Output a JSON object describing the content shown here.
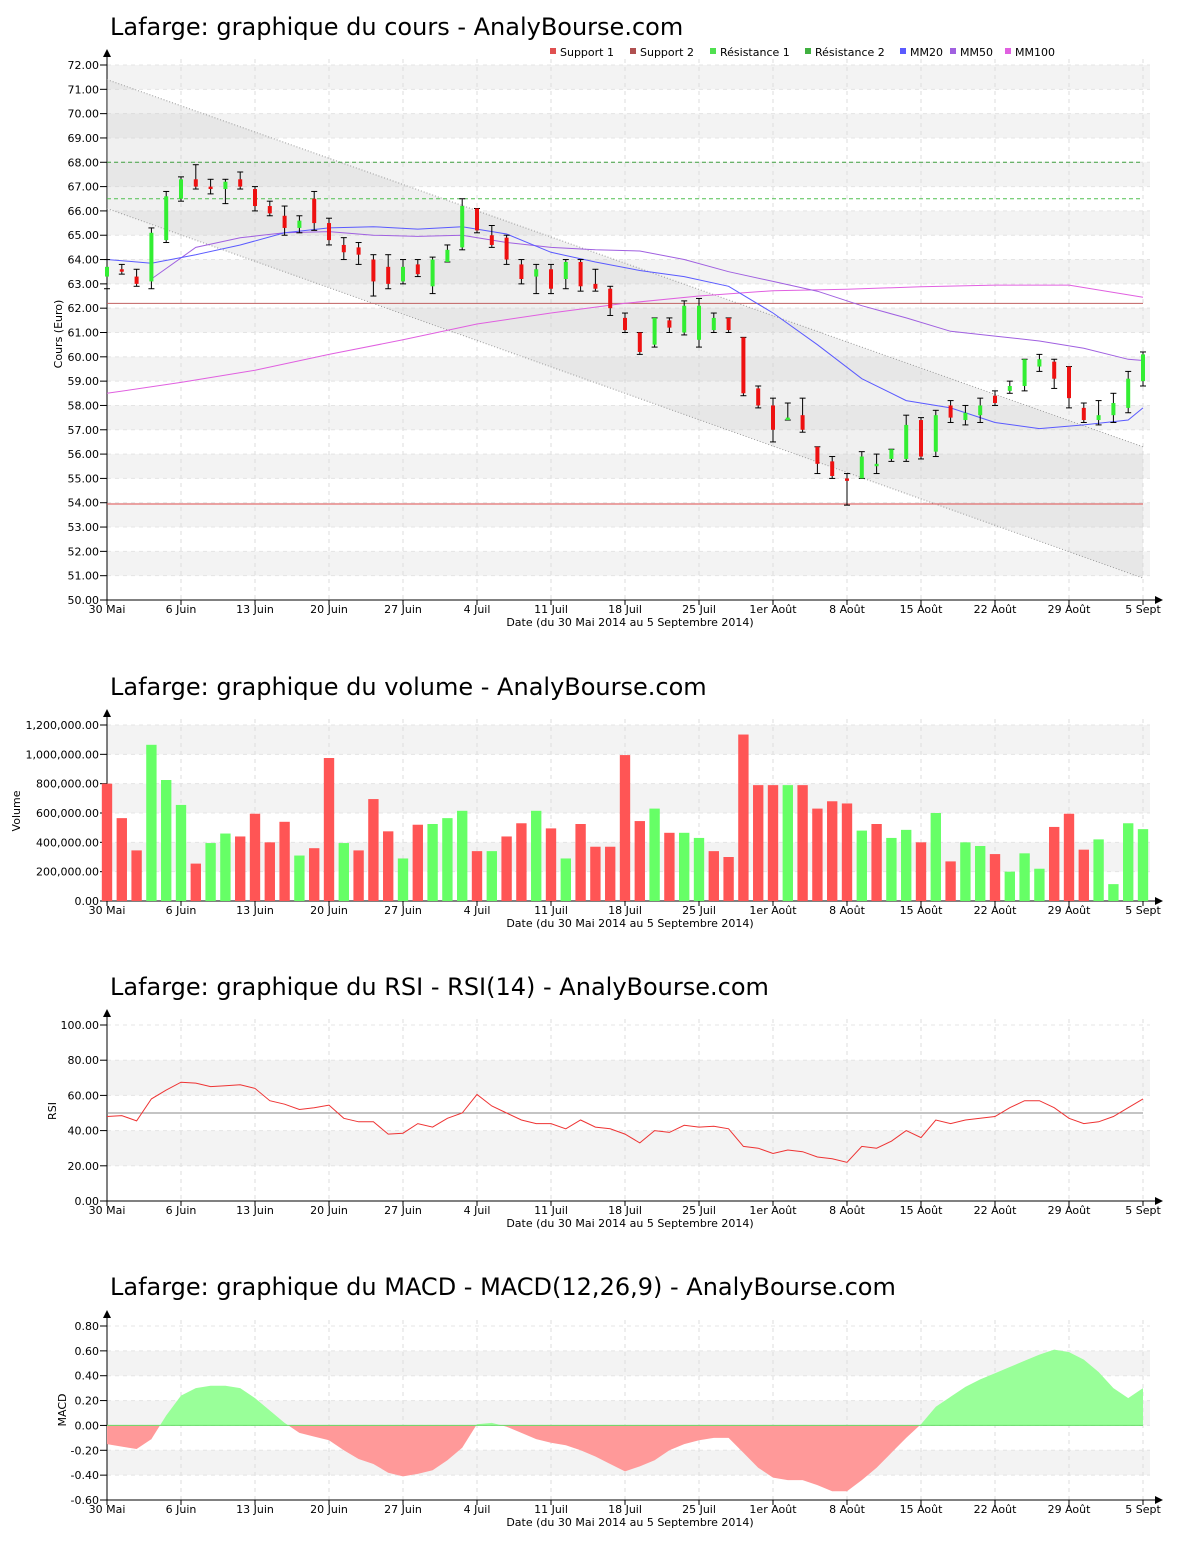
{
  "chart_data": [
    {
      "id": "price",
      "type": "candlestick",
      "title": "Lafarge: graphique du cours - AnalyBourse.com",
      "ylabel": "Cours (Euro)",
      "xlabel": "Date (du 30 Mai 2014 au 5 Septembre 2014)",
      "ylim": [
        50,
        72
      ],
      "yticks": [
        "50.00",
        "51.00",
        "52.00",
        "53.00",
        "54.00",
        "55.00",
        "56.00",
        "57.00",
        "58.00",
        "59.00",
        "60.00",
        "61.00",
        "62.00",
        "63.00",
        "64.00",
        "65.00",
        "66.00",
        "67.00",
        "68.00",
        "69.00",
        "70.00",
        "71.00",
        "72.00"
      ],
      "xticks": [
        "30 Mai",
        "6 Juin",
        "13 Juin",
        "20 Juin",
        "27 Juin",
        "4 Juil",
        "11 Juil",
        "18 Juil",
        "25 Juil",
        "1er Août",
        "8 Août",
        "15 Août",
        "22 Août",
        "29 Août",
        "5 Sept"
      ],
      "legend": [
        {
          "name": "Support 1",
          "color": "#e05050"
        },
        {
          "name": "Support 2",
          "color": "#b05050"
        },
        {
          "name": "Résistance 1",
          "color": "#50e050"
        },
        {
          "name": "Résistance 2",
          "color": "#40b040"
        },
        {
          "name": "MM20",
          "color": "#5a5aff"
        },
        {
          "name": "MM50",
          "color": "#a060e0"
        },
        {
          "name": "MM100",
          "color": "#e060e0"
        }
      ],
      "levels": {
        "support1": 53.95,
        "support2": 62.2,
        "resistance1": 66.5,
        "resistance2": 68.0
      },
      "channel": {
        "upper": [
          71.4,
          56.3
        ],
        "lower": [
          66.1,
          50.9
        ]
      },
      "candles": [
        [
          63.3,
          64.0,
          62.8,
          63.7
        ],
        [
          63.6,
          63.8,
          63.4,
          63.5
        ],
        [
          63.3,
          63.6,
          62.9,
          63.0
        ],
        [
          63.1,
          65.3,
          62.8,
          65.1
        ],
        [
          64.8,
          66.8,
          64.7,
          66.6
        ],
        [
          66.5,
          67.4,
          66.4,
          67.3
        ],
        [
          67.3,
          67.9,
          66.9,
          67.0
        ],
        [
          67.0,
          67.3,
          66.7,
          66.9
        ],
        [
          66.9,
          67.3,
          66.3,
          67.2
        ],
        [
          67.3,
          67.6,
          66.9,
          67.0
        ],
        [
          66.9,
          67.0,
          66.0,
          66.2
        ],
        [
          66.2,
          66.4,
          65.8,
          65.9
        ],
        [
          65.8,
          66.2,
          65.0,
          65.3
        ],
        [
          65.3,
          65.8,
          65.1,
          65.6
        ],
        [
          66.5,
          66.8,
          65.2,
          65.5
        ],
        [
          65.5,
          65.7,
          64.6,
          64.8
        ],
        [
          64.6,
          64.9,
          64.0,
          64.3
        ],
        [
          64.5,
          64.7,
          63.8,
          64.2
        ],
        [
          64.0,
          64.2,
          62.5,
          63.1
        ],
        [
          63.7,
          64.2,
          62.8,
          63.0
        ],
        [
          63.1,
          64.0,
          63.0,
          63.7
        ],
        [
          63.8,
          64.0,
          63.3,
          63.4
        ],
        [
          62.9,
          64.1,
          62.6,
          64.0
        ],
        [
          63.9,
          64.6,
          63.9,
          64.4
        ],
        [
          64.5,
          66.5,
          64.4,
          66.2
        ],
        [
          66.1,
          66.1,
          65.1,
          65.2
        ],
        [
          65.0,
          65.4,
          64.5,
          64.6
        ],
        [
          64.9,
          65.0,
          63.8,
          64.0
        ],
        [
          63.8,
          64.0,
          63.0,
          63.2
        ],
        [
          63.3,
          63.8,
          62.6,
          63.6
        ],
        [
          63.6,
          63.8,
          62.6,
          62.8
        ],
        [
          63.2,
          64.0,
          62.8,
          63.9
        ],
        [
          63.9,
          64.0,
          62.7,
          62.9
        ],
        [
          63.0,
          63.6,
          62.7,
          62.8
        ],
        [
          62.8,
          62.9,
          61.7,
          62.0
        ],
        [
          61.6,
          61.8,
          61.0,
          61.1
        ],
        [
          61.0,
          61.0,
          60.1,
          60.2
        ],
        [
          60.5,
          61.6,
          60.4,
          61.6
        ],
        [
          61.5,
          61.6,
          61.0,
          61.2
        ],
        [
          61.0,
          62.3,
          60.9,
          62.1
        ],
        [
          60.7,
          62.4,
          60.4,
          62.1
        ],
        [
          61.1,
          61.8,
          61.0,
          61.6
        ],
        [
          61.6,
          61.6,
          61.0,
          61.1
        ],
        [
          60.8,
          60.8,
          58.4,
          58.5
        ],
        [
          58.7,
          58.8,
          57.9,
          58.0
        ],
        [
          58.0,
          58.3,
          56.5,
          57.0
        ],
        [
          57.4,
          58.1,
          57.4,
          57.5
        ],
        [
          57.6,
          58.3,
          56.9,
          57.0
        ],
        [
          56.3,
          56.3,
          55.2,
          55.6
        ],
        [
          55.7,
          55.9,
          55.0,
          55.1
        ],
        [
          55.0,
          55.2,
          53.9,
          54.9
        ],
        [
          55.0,
          56.1,
          55.0,
          55.9
        ],
        [
          55.5,
          56.0,
          55.2,
          55.6
        ],
        [
          55.8,
          56.2,
          55.7,
          56.2
        ],
        [
          55.8,
          57.6,
          55.7,
          57.2
        ],
        [
          57.4,
          57.5,
          55.8,
          55.9
        ],
        [
          56.1,
          57.8,
          55.9,
          57.6
        ],
        [
          58.0,
          58.2,
          57.3,
          57.5
        ],
        [
          57.4,
          58.0,
          57.2,
          57.7
        ],
        [
          57.6,
          58.3,
          57.3,
          58.0
        ],
        [
          58.4,
          58.6,
          58.0,
          58.1
        ],
        [
          58.6,
          59.0,
          58.5,
          58.8
        ],
        [
          58.8,
          59.9,
          58.6,
          59.9
        ],
        [
          59.6,
          60.1,
          59.4,
          59.9
        ],
        [
          59.8,
          59.9,
          58.7,
          59.1
        ],
        [
          59.6,
          59.6,
          57.9,
          58.3
        ],
        [
          57.9,
          58.1,
          57.3,
          57.4
        ],
        [
          57.4,
          58.2,
          57.2,
          57.6
        ],
        [
          57.6,
          58.5,
          57.3,
          58.1
        ],
        [
          57.9,
          59.4,
          57.7,
          59.1
        ],
        [
          59.0,
          60.2,
          58.8,
          60.1
        ]
      ],
      "mm20": [
        [
          0,
          64.0
        ],
        [
          3,
          63.85
        ],
        [
          6,
          64.2
        ],
        [
          9,
          64.6
        ],
        [
          12,
          65.1
        ],
        [
          15,
          65.3
        ],
        [
          18,
          65.35
        ],
        [
          21,
          65.25
        ],
        [
          24,
          65.35
        ],
        [
          27,
          65.05
        ],
        [
          30,
          64.3
        ],
        [
          33,
          63.9
        ],
        [
          36,
          63.55
        ],
        [
          39,
          63.3
        ],
        [
          42,
          62.9
        ],
        [
          45,
          61.8
        ],
        [
          48,
          60.5
        ],
        [
          51,
          59.1
        ],
        [
          54,
          58.2
        ],
        [
          57,
          57.9
        ],
        [
          60,
          57.3
        ],
        [
          63,
          57.05
        ],
        [
          66,
          57.2
        ],
        [
          69,
          57.4
        ],
        [
          70,
          57.9
        ]
      ],
      "mm50": [
        [
          3,
          63.2
        ],
        [
          6,
          64.5
        ],
        [
          9,
          64.9
        ],
        [
          12,
          65.1
        ],
        [
          15,
          65.15
        ],
        [
          18,
          65.0
        ],
        [
          21,
          64.95
        ],
        [
          24,
          65.0
        ],
        [
          27,
          64.7
        ],
        [
          30,
          64.5
        ],
        [
          33,
          64.4
        ],
        [
          36,
          64.35
        ],
        [
          39,
          64.0
        ],
        [
          42,
          63.5
        ],
        [
          45,
          63.1
        ],
        [
          48,
          62.7
        ],
        [
          51,
          62.1
        ],
        [
          54,
          61.6
        ],
        [
          57,
          61.05
        ],
        [
          60,
          60.85
        ],
        [
          63,
          60.65
        ],
        [
          66,
          60.35
        ],
        [
          69,
          59.9
        ],
        [
          70,
          59.85
        ]
      ],
      "mm100": [
        [
          0,
          58.5
        ],
        [
          5,
          58.95
        ],
        [
          10,
          59.45
        ],
        [
          15,
          60.1
        ],
        [
          20,
          60.7
        ],
        [
          25,
          61.35
        ],
        [
          30,
          61.8
        ],
        [
          35,
          62.2
        ],
        [
          40,
          62.5
        ],
        [
          45,
          62.72
        ],
        [
          50,
          62.78
        ],
        [
          55,
          62.88
        ],
        [
          60,
          62.95
        ],
        [
          65,
          62.95
        ],
        [
          70,
          62.45
        ]
      ]
    },
    {
      "id": "volume",
      "type": "bar",
      "title": "Lafarge: graphique du volume - AnalyBourse.com",
      "ylabel": "Volume",
      "xlabel": "Date (du 30 Mai 2014 au 5 Septembre 2014)",
      "ylim": [
        0,
        1200000
      ],
      "yticks": [
        "0.00",
        "200,000.00",
        "400,000.00",
        "600,000.00",
        "800,000.00",
        "1,000,000.00",
        "1,200,000.00"
      ],
      "xticks": [
        "30 Mai",
        "6 Juin",
        "13 Juin",
        "20 Juin",
        "27 Juin",
        "4 Juil",
        "11 Juil",
        "18 Juil",
        "25 Juil",
        "1er Août",
        "8 Août",
        "15 Août",
        "22 Août",
        "29 Août",
        "5 Sept"
      ],
      "values": [
        800000,
        565000,
        345000,
        1065000,
        825000,
        655000,
        255000,
        395000,
        460000,
        440000,
        595000,
        400000,
        540000,
        310000,
        360000,
        975000,
        395000,
        345000,
        695000,
        475000,
        290000,
        520000,
        525000,
        565000,
        615000,
        340000,
        340000,
        440000,
        530000,
        615000,
        495000,
        290000,
        525000,
        370000,
        370000,
        995000,
        545000,
        630000,
        465000,
        465000,
        430000,
        340000,
        300000,
        1135000,
        790000,
        790000,
        790000,
        790000,
        630000,
        680000,
        665000,
        480000,
        525000,
        430000,
        485000,
        400000,
        600000,
        270000,
        400000,
        375000,
        320000,
        200000,
        325000,
        220000,
        505000,
        595000,
        350000,
        420000,
        115000,
        530000,
        490000
      ],
      "colors": [
        "r",
        "r",
        "r",
        "g",
        "g",
        "g",
        "r",
        "g",
        "g",
        "r",
        "r",
        "r",
        "r",
        "g",
        "r",
        "r",
        "g",
        "r",
        "r",
        "r",
        "g",
        "r",
        "g",
        "g",
        "g",
        "r",
        "g",
        "r",
        "r",
        "g",
        "r",
        "g",
        "r",
        "r",
        "r",
        "r",
        "r",
        "g",
        "r",
        "g",
        "g",
        "r",
        "r",
        "r",
        "r",
        "r",
        "g",
        "r",
        "r",
        "r",
        "r",
        "g",
        "r",
        "g",
        "g",
        "r",
        "g",
        "r",
        "g",
        "g",
        "r",
        "g",
        "g",
        "g",
        "r",
        "r",
        "r",
        "g",
        "g",
        "g",
        "g"
      ]
    },
    {
      "id": "rsi",
      "type": "line",
      "title": "Lafarge: graphique du RSI - RSI(14) - AnalyBourse.com",
      "ylabel": "RSI",
      "xlabel": "Date (du 30 Mai 2014 au 5 Septembre 2014)",
      "ylim": [
        0,
        100
      ],
      "yticks": [
        "0.00",
        "20.00",
        "40.00",
        "60.00",
        "80.00",
        "100.00"
      ],
      "xticks": [
        "30 Mai",
        "6 Juin",
        "13 Juin",
        "20 Juin",
        "27 Juin",
        "4 Juil",
        "11 Juil",
        "18 Juil",
        "25 Juil",
        "1er Août",
        "8 Août",
        "15 Août",
        "22 Août",
        "29 Août",
        "5 Sept"
      ],
      "midline": 50,
      "values": [
        48,
        48.5,
        45.5,
        58,
        63,
        67.5,
        67,
        65,
        65.5,
        66,
        64,
        57,
        55,
        52,
        53,
        54.5,
        47,
        45,
        45,
        38,
        38.5,
        44,
        42,
        47,
        50,
        60.5,
        54,
        50,
        46,
        44,
        44,
        41,
        46,
        42,
        41,
        38,
        33,
        40,
        39,
        43,
        42,
        42.5,
        41,
        31,
        30,
        27,
        29,
        28,
        25,
        24,
        22,
        31,
        30,
        34,
        40,
        36,
        46,
        44,
        46,
        47,
        48,
        53,
        57,
        57,
        53,
        47,
        44,
        45,
        48,
        53,
        58
      ]
    },
    {
      "id": "macd",
      "type": "area",
      "title": "Lafarge: graphique du MACD - MACD(12,26,9) - AnalyBourse.com",
      "ylabel": "MACD",
      "xlabel": "Date (du 30 Mai 2014 au 5 Septembre 2014)",
      "ylim": [
        -0.6,
        0.8
      ],
      "yticks": [
        "-0.60",
        "-0.40",
        "-0.20",
        "0.00",
        "0.20",
        "0.40",
        "0.60",
        "0.80"
      ],
      "xticks": [
        "30 Mai",
        "6 Juin",
        "13 Juin",
        "20 Juin",
        "27 Juin",
        "4 Juil",
        "11 Juil",
        "18 Juil",
        "25 Juil",
        "1er Août",
        "8 Août",
        "15 Août",
        "22 Août",
        "29 Août",
        "5 Sept"
      ],
      "values": [
        -0.15,
        -0.17,
        -0.19,
        -0.11,
        0.08,
        0.24,
        0.3,
        0.32,
        0.32,
        0.3,
        0.22,
        0.12,
        0.02,
        -0.06,
        -0.09,
        -0.12,
        -0.2,
        -0.27,
        -0.31,
        -0.38,
        -0.41,
        -0.39,
        -0.36,
        -0.28,
        -0.18,
        0.01,
        0.02,
        -0.01,
        -0.06,
        -0.11,
        -0.14,
        -0.16,
        -0.2,
        -0.25,
        -0.31,
        -0.37,
        -0.33,
        -0.28,
        -0.2,
        -0.15,
        -0.12,
        -0.1,
        -0.1,
        -0.22,
        -0.34,
        -0.42,
        -0.44,
        -0.44,
        -0.48,
        -0.53,
        -0.53,
        -0.44,
        -0.34,
        -0.22,
        -0.1,
        0.01,
        0.15,
        0.23,
        0.31,
        0.37,
        0.42,
        0.47,
        0.52,
        0.57,
        0.61,
        0.59,
        0.53,
        0.43,
        0.3,
        0.22,
        0.3
      ]
    }
  ]
}
